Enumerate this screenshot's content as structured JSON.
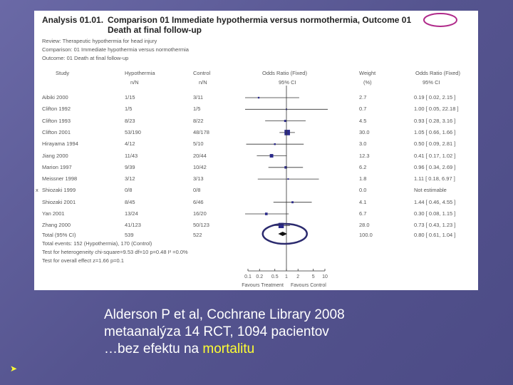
{
  "caption": {
    "line1": "Alderson P et al, Cochrane Library 2008",
    "line2": "metaanalýza 14 RCT, 1094 pacientov",
    "line3_prefix": "…bez efektu na ",
    "line3_highlight": "mortalitu",
    "highlight_color": "#ffff33"
  },
  "chart_data": {
    "type": "forest",
    "analysis_label": "Analysis 01.01.",
    "title": "Comparison 01 Immediate hypothermia versus normothermia, Outcome 01 Death at final follow-up",
    "review_line": "Review:    Therapeutic hypothermia for head injury",
    "comparison_line": "Comparison: 01 Immediate hypothermia versus normothermia",
    "outcome_line": "Outcome:   01 Death at final follow-up",
    "columns": {
      "study": "Study",
      "treatment": "Hypothermia",
      "treatment_sub": "n/N",
      "control": "Control",
      "control_sub": "n/N",
      "or": "Odds Ratio (Fixed)",
      "or_sub": "95% CI",
      "weight": "Weight",
      "weight_sub": "(%)",
      "or_value": "Odds Ratio (Fixed)",
      "or_value_sub": "95% CI"
    },
    "x_axis": {
      "scale": "log",
      "ticks": [
        0.1,
        0.2,
        0.5,
        1,
        2,
        5,
        10
      ],
      "tick_labels": [
        "0.1",
        "0.2",
        "0.5",
        "1",
        "2",
        "5",
        "10"
      ],
      "left_label": "Favours Treatment",
      "right_label": "Favours Control"
    },
    "studies": [
      {
        "name": "Aibiki 2000",
        "treatment": "1/15",
        "control": "3/11",
        "weight": "2.7",
        "or_text": "0.19 [ 0.02, 2.15 ]",
        "or": 0.19,
        "lo": 0.02,
        "hi": 2.15,
        "estimable": true,
        "marker": ""
      },
      {
        "name": "Clifton 1992",
        "treatment": "1/5",
        "control": "1/5",
        "weight": "0.7",
        "or_text": "1.00 [ 0.05, 22.18 ]",
        "or": 1.0,
        "lo": 0.05,
        "hi": 22.18,
        "estimable": true,
        "marker": ""
      },
      {
        "name": "Clifton 1993",
        "treatment": "8/23",
        "control": "8/22",
        "weight": "4.5",
        "or_text": "0.93 [ 0.28, 3.16 ]",
        "or": 0.93,
        "lo": 0.28,
        "hi": 3.16,
        "estimable": true,
        "marker": ""
      },
      {
        "name": "Clifton 2001",
        "treatment": "53/190",
        "control": "48/178",
        "weight": "30.0",
        "or_text": "1.05 [ 0.66, 1.66 ]",
        "or": 1.05,
        "lo": 0.66,
        "hi": 1.66,
        "estimable": true,
        "marker": ""
      },
      {
        "name": "Hirayama 1994",
        "treatment": "4/12",
        "control": "5/10",
        "weight": "3.0",
        "or_text": "0.50 [ 0.09, 2.81 ]",
        "or": 0.5,
        "lo": 0.09,
        "hi": 2.81,
        "estimable": true,
        "marker": ""
      },
      {
        "name": "Jiang 2000",
        "treatment": "11/43",
        "control": "20/44",
        "weight": "12.3",
        "or_text": "0.41 [ 0.17, 1.02 ]",
        "or": 0.41,
        "lo": 0.17,
        "hi": 1.02,
        "estimable": true,
        "marker": ""
      },
      {
        "name": "Marion 1997",
        "treatment": "9/39",
        "control": "10/42",
        "weight": "6.2",
        "or_text": "0.96 [ 0.34, 2.69 ]",
        "or": 0.96,
        "lo": 0.34,
        "hi": 2.69,
        "estimable": true,
        "marker": ""
      },
      {
        "name": "Meissner 1998",
        "treatment": "3/12",
        "control": "3/13",
        "weight": "1.8",
        "or_text": "1.11 [ 0.18, 6.97 ]",
        "or": 1.11,
        "lo": 0.18,
        "hi": 6.97,
        "estimable": true,
        "marker": ""
      },
      {
        "name": "Shiozaki 1999",
        "treatment": "0/8",
        "control": "0/8",
        "weight": "0.0",
        "or_text": "Not estimable",
        "or": null,
        "lo": null,
        "hi": null,
        "estimable": false,
        "marker": "x"
      },
      {
        "name": "Shiozaki 2001",
        "treatment": "8/45",
        "control": "6/46",
        "weight": "4.1",
        "or_text": "1.44 [ 0.46, 4.55 ]",
        "or": 1.44,
        "lo": 0.46,
        "hi": 4.55,
        "estimable": true,
        "marker": ""
      },
      {
        "name": "Yan 2001",
        "treatment": "13/24",
        "control": "16/20",
        "weight": "6.7",
        "or_text": "0.30 [ 0.08, 1.15 ]",
        "or": 0.3,
        "lo": 0.08,
        "hi": 1.15,
        "estimable": true,
        "marker": ""
      },
      {
        "name": "Zhang 2000",
        "treatment": "41/123",
        "control": "50/123",
        "weight": "28.0",
        "or_text": "0.73 [ 0.43, 1.23 ]",
        "or": 0.73,
        "lo": 0.43,
        "hi": 1.23,
        "estimable": true,
        "marker": ""
      }
    ],
    "total": {
      "label": "Total (95% CI)",
      "treatment": "539",
      "control": "522",
      "weight": "100.0",
      "or_text": "0.80 [ 0.61, 1.04 ]",
      "or": 0.8,
      "lo": 0.61,
      "hi": 1.04
    },
    "footer": {
      "events": "Total events: 152 (Hypothermia), 170 (Control)",
      "heterogeneity": "Test for heterogeneity chi-square=9.53 df=10 p=0.48 I² =0.0%",
      "overall": "Test for overall effect z=1.66  p=0.1"
    },
    "colors": {
      "marker": "#2b2a8a",
      "highlight_circle": "#2b2a6e",
      "line": "#333333"
    }
  }
}
